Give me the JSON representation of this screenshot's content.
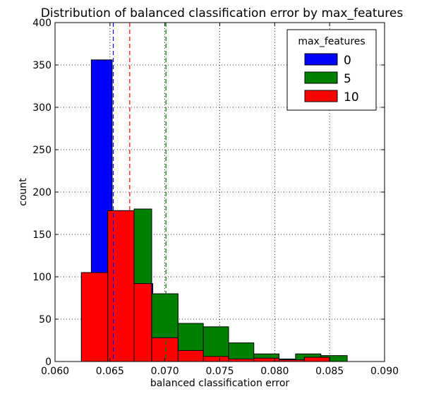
{
  "chart_data": {
    "type": "histogram",
    "title": "Distribution of balanced classification error by max_features",
    "xlabel": "balanced classification error",
    "ylabel": "count",
    "xlim": [
      0.06,
      0.09
    ],
    "ylim": [
      0,
      400
    ],
    "xticks": [
      "0.060",
      "0.065",
      "0.070",
      "0.075",
      "0.080",
      "0.085",
      "0.090"
    ],
    "yticks": [
      "0",
      "50",
      "100",
      "150",
      "200",
      "250",
      "300",
      "350",
      "400"
    ],
    "grid": true,
    "legend": {
      "title": "max_features",
      "placement": "top-right",
      "entries": [
        "0",
        "5",
        "10"
      ]
    },
    "series": [
      {
        "name": "0",
        "color": "#0000ff",
        "edges": [
          0.0633,
          0.0652,
          0.067,
          0.0689,
          0.0708,
          0.0726,
          0.0745,
          0.0764,
          0.0783,
          0.0801,
          0.082,
          0.0839
        ],
        "counts": [
          356,
          178,
          92,
          28,
          13,
          6,
          3,
          1,
          0,
          0,
          0
        ],
        "mean": 0.0653
      },
      {
        "name": "5",
        "color": "#008000",
        "edges": [
          0.0624,
          0.0648,
          0.0672,
          0.0688,
          0.0712,
          0.0735,
          0.0758,
          0.0781,
          0.0804,
          0.0819,
          0.0842,
          0.0866
        ],
        "counts": [
          105,
          178,
          180,
          80,
          45,
          41,
          22,
          9,
          3,
          9,
          7
        ],
        "mean": 0.0701
      },
      {
        "name": "10",
        "color": "#ff0000",
        "edges": [
          0.0624,
          0.0648,
          0.0672,
          0.0688,
          0.0712,
          0.0735,
          0.0758,
          0.0781,
          0.0804,
          0.0827,
          0.085
        ],
        "counts": [
          105,
          178,
          92,
          28,
          13,
          6,
          3,
          4,
          2,
          5
        ],
        "mean": 0.0668
      }
    ]
  }
}
